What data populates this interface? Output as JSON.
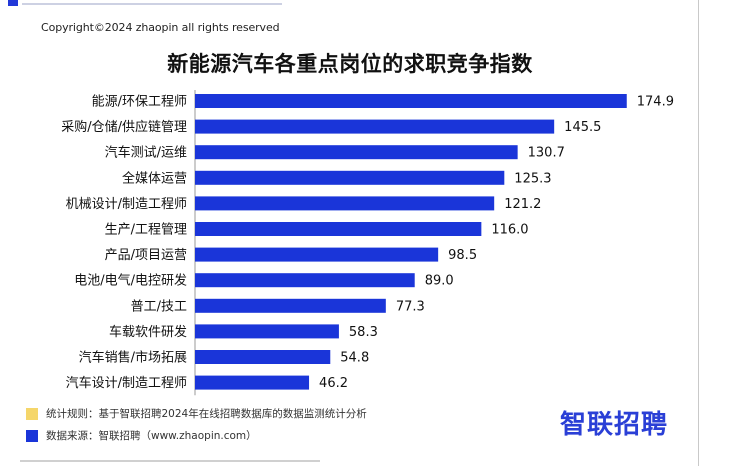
{
  "copyright": "Copyright©2024 zhaopin all rights reserved",
  "chart_data": {
    "type": "bar",
    "orientation": "horizontal",
    "title": "新能源汽车各重点岗位的求职竞争指数",
    "categories": [
      "能源/环保工程师",
      "采购/仓储/供应链管理",
      "汽车测试/运维",
      "全媒体运营",
      "机械设计/制造工程师",
      "生产/工程管理",
      "产品/项目运营",
      "电池/电气/电控研发",
      "普工/技工",
      "车载软件研发",
      "汽车销售/市场拓展",
      "汽车设计/制造工程师"
    ],
    "values": [
      174.9,
      145.5,
      130.7,
      125.3,
      121.2,
      116.0,
      98.5,
      89.0,
      77.3,
      58.3,
      54.8,
      46.2
    ],
    "value_labels": [
      "174.9",
      "145.5",
      "130.7",
      "125.3",
      "121.2",
      "116.0",
      "98.5",
      "89.0",
      "77.3",
      "58.3",
      "54.8",
      "46.2"
    ],
    "xlim": [
      0,
      175
    ],
    "bar_color": "#1a35d9"
  },
  "footer": {
    "stat_note": "统计规则：基于智联招聘2024年在线招聘数据库的数据监测统计分析",
    "source": "数据来源：智联招聘（www.zhaopin.com）",
    "stat_color": "#f5d66a",
    "source_color": "#1a35d9"
  },
  "brand": "智联招聘"
}
